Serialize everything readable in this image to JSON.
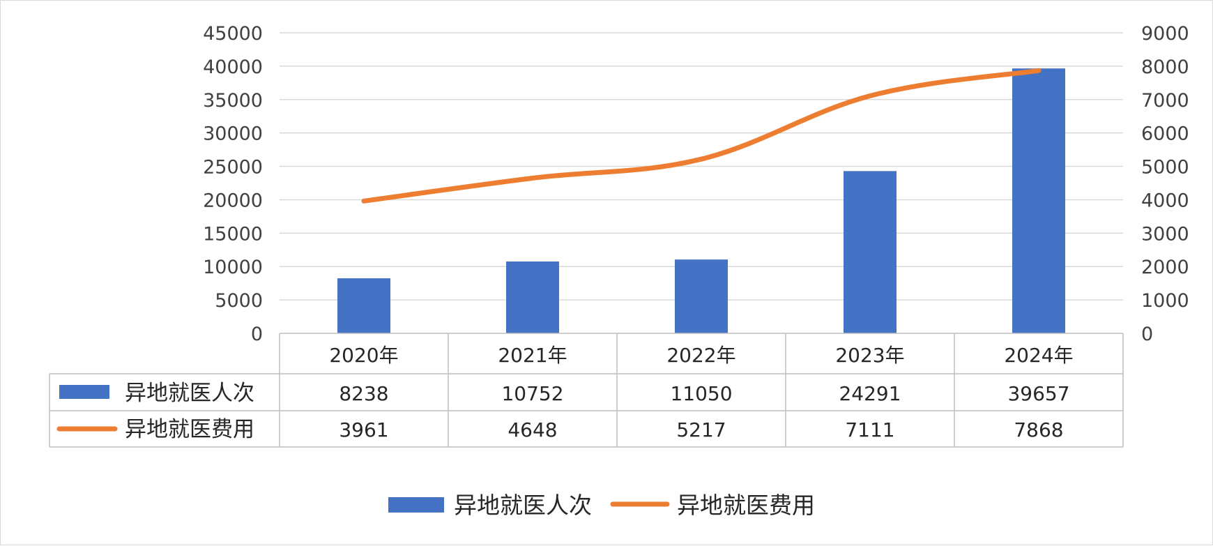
{
  "chart_data": {
    "type": "bar",
    "categories": [
      "2020年",
      "2021年",
      "2022年",
      "2023年",
      "2024年"
    ],
    "series": [
      {
        "name": "异地就医人次",
        "type": "bar",
        "axis": "left",
        "color": "#4472C4",
        "values": [
          8238,
          10752,
          11050,
          24291,
          39657
        ]
      },
      {
        "name": "异地就医费用",
        "type": "line",
        "axis": "right",
        "color": "#ED7D31",
        "values": [
          3961,
          4648,
          5217,
          7111,
          7868
        ]
      }
    ],
    "ylim": [
      0,
      45000
    ],
    "y_ticks": [
      "0",
      "5000",
      "10000",
      "15000",
      "20000",
      "25000",
      "30000",
      "35000",
      "40000",
      "45000"
    ],
    "y2lim": [
      0,
      9000
    ],
    "y2_ticks": [
      "0",
      "1000",
      "2000",
      "3000",
      "4000",
      "5000",
      "6000",
      "7000",
      "8000",
      "9000"
    ],
    "grid": true,
    "data_table": true,
    "legend": "bottom"
  }
}
